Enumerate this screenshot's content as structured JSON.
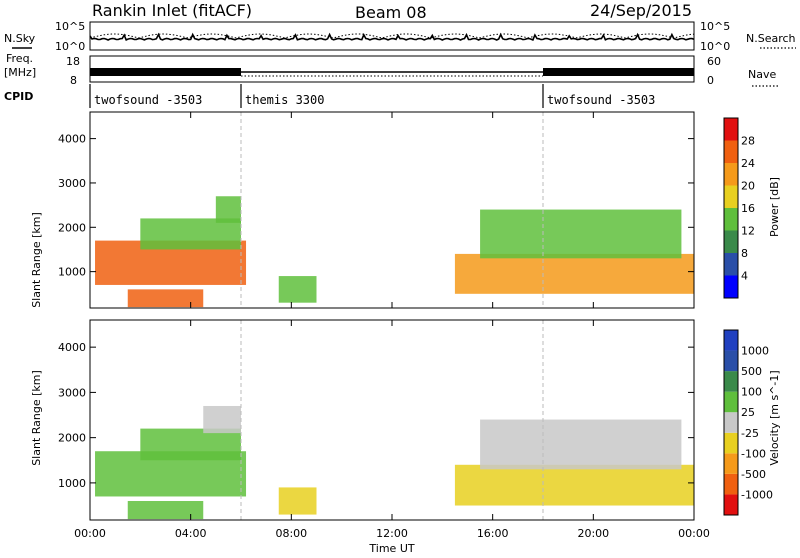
{
  "header": {
    "title": "Rankin Inlet (fitACF)",
    "beam": "Beam 08",
    "date": "24/Sep/2015"
  },
  "side_labels": {
    "nsky": "N.Sky",
    "freq_line1": "Freq.",
    "freq_line2": "[MHz]",
    "cpid": "CPID",
    "nsearch": "N.Search",
    "nave": "Nave"
  },
  "noise_panel": {
    "left_ticks": [
      "10^5",
      "10^0"
    ],
    "right_ticks": [
      "10^5",
      "10^0"
    ]
  },
  "freq_panel": {
    "left_ticks": [
      "18",
      "8"
    ],
    "right_ticks": [
      "60",
      "0"
    ]
  },
  "cpid_modes": [
    {
      "label": "twofsound -3503",
      "start_hour": 0
    },
    {
      "label": "themis 3300",
      "start_hour": 6
    },
    {
      "label": "twofsound -3503",
      "start_hour": 18
    }
  ],
  "x_axis": {
    "label": "Time UT",
    "ticks": [
      "00:00",
      "04:00",
      "08:00",
      "12:00",
      "16:00",
      "20:00",
      "00:00"
    ]
  },
  "chart_data": [
    {
      "type": "heatmap",
      "title": "",
      "quantity": "Power",
      "ylabel": "Slant Range [km]",
      "xlabel": "Time UT",
      "xlim_hours": [
        0,
        24
      ],
      "ylim_km": [
        180,
        4600
      ],
      "y_ticks": [
        "4000",
        "3000",
        "2000",
        "1000"
      ],
      "colorbar": {
        "label": "Power [dB]",
        "ticks": [
          "28",
          "24",
          "20",
          "16",
          "12",
          "8",
          "4"
        ],
        "range": [
          0,
          30
        ],
        "colors": [
          "#0000ff",
          "#2a4fa8",
          "#3a8a4a",
          "#5fbf3c",
          "#e8d020",
          "#f59a1a",
          "#f06010",
          "#e21010"
        ]
      },
      "echo_regions": [
        {
          "start_hour": 0.2,
          "end_hour": 6.2,
          "min_km": 700,
          "max_km": 1700,
          "level": 24
        },
        {
          "start_hour": 2.0,
          "end_hour": 6.0,
          "min_km": 1500,
          "max_km": 2200,
          "level": 14
        },
        {
          "start_hour": 5.0,
          "end_hour": 6.0,
          "min_km": 2100,
          "max_km": 2700,
          "level": 13
        },
        {
          "start_hour": 1.5,
          "end_hour": 4.5,
          "min_km": 200,
          "max_km": 600,
          "level": 24
        },
        {
          "start_hour": 7.5,
          "end_hour": 9.0,
          "min_km": 300,
          "max_km": 900,
          "level": 14
        },
        {
          "start_hour": 14.5,
          "end_hour": 24.0,
          "min_km": 500,
          "max_km": 1400,
          "level": 22
        },
        {
          "start_hour": 15.5,
          "end_hour": 23.5,
          "min_km": 1300,
          "max_km": 2400,
          "level": 12
        }
      ]
    },
    {
      "type": "heatmap",
      "title": "",
      "quantity": "Velocity",
      "ylabel": "Slant Range [km]",
      "xlabel": "Time UT",
      "xlim_hours": [
        0,
        24
      ],
      "ylim_km": [
        180,
        4600
      ],
      "y_ticks": [
        "4000",
        "3000",
        "2000",
        "1000"
      ],
      "colorbar": {
        "label": "Velocity [m s^-1]",
        "ticks": [
          "1000",
          "500",
          "100",
          "25",
          "-25",
          "-100",
          "-500",
          "-1000"
        ],
        "range": [
          -1250,
          1250
        ],
        "colors": [
          "#e21010",
          "#f06010",
          "#f59a1a",
          "#e8d020",
          "#c8c8c8",
          "#5fbf3c",
          "#3a8a4a",
          "#2a4fa8",
          "#2040c0"
        ]
      },
      "echo_regions": [
        {
          "start_hour": 0.2,
          "end_hour": 6.2,
          "min_km": 700,
          "max_km": 1700,
          "level": 300
        },
        {
          "start_hour": 2.0,
          "end_hour": 6.0,
          "min_km": 1500,
          "max_km": 2200,
          "level": 200
        },
        {
          "start_hour": 4.5,
          "end_hour": 6.0,
          "min_km": 2100,
          "max_km": 2700,
          "level": 0
        },
        {
          "start_hour": 1.5,
          "end_hour": 4.5,
          "min_km": 200,
          "max_km": 600,
          "level": 150
        },
        {
          "start_hour": 7.5,
          "end_hour": 9.0,
          "min_km": 300,
          "max_km": 900,
          "level": -150
        },
        {
          "start_hour": 14.5,
          "end_hour": 24.0,
          "min_km": 500,
          "max_km": 1400,
          "level": -400
        },
        {
          "start_hour": 15.5,
          "end_hour": 23.5,
          "min_km": 1300,
          "max_km": 2400,
          "level": 0
        }
      ]
    }
  ]
}
